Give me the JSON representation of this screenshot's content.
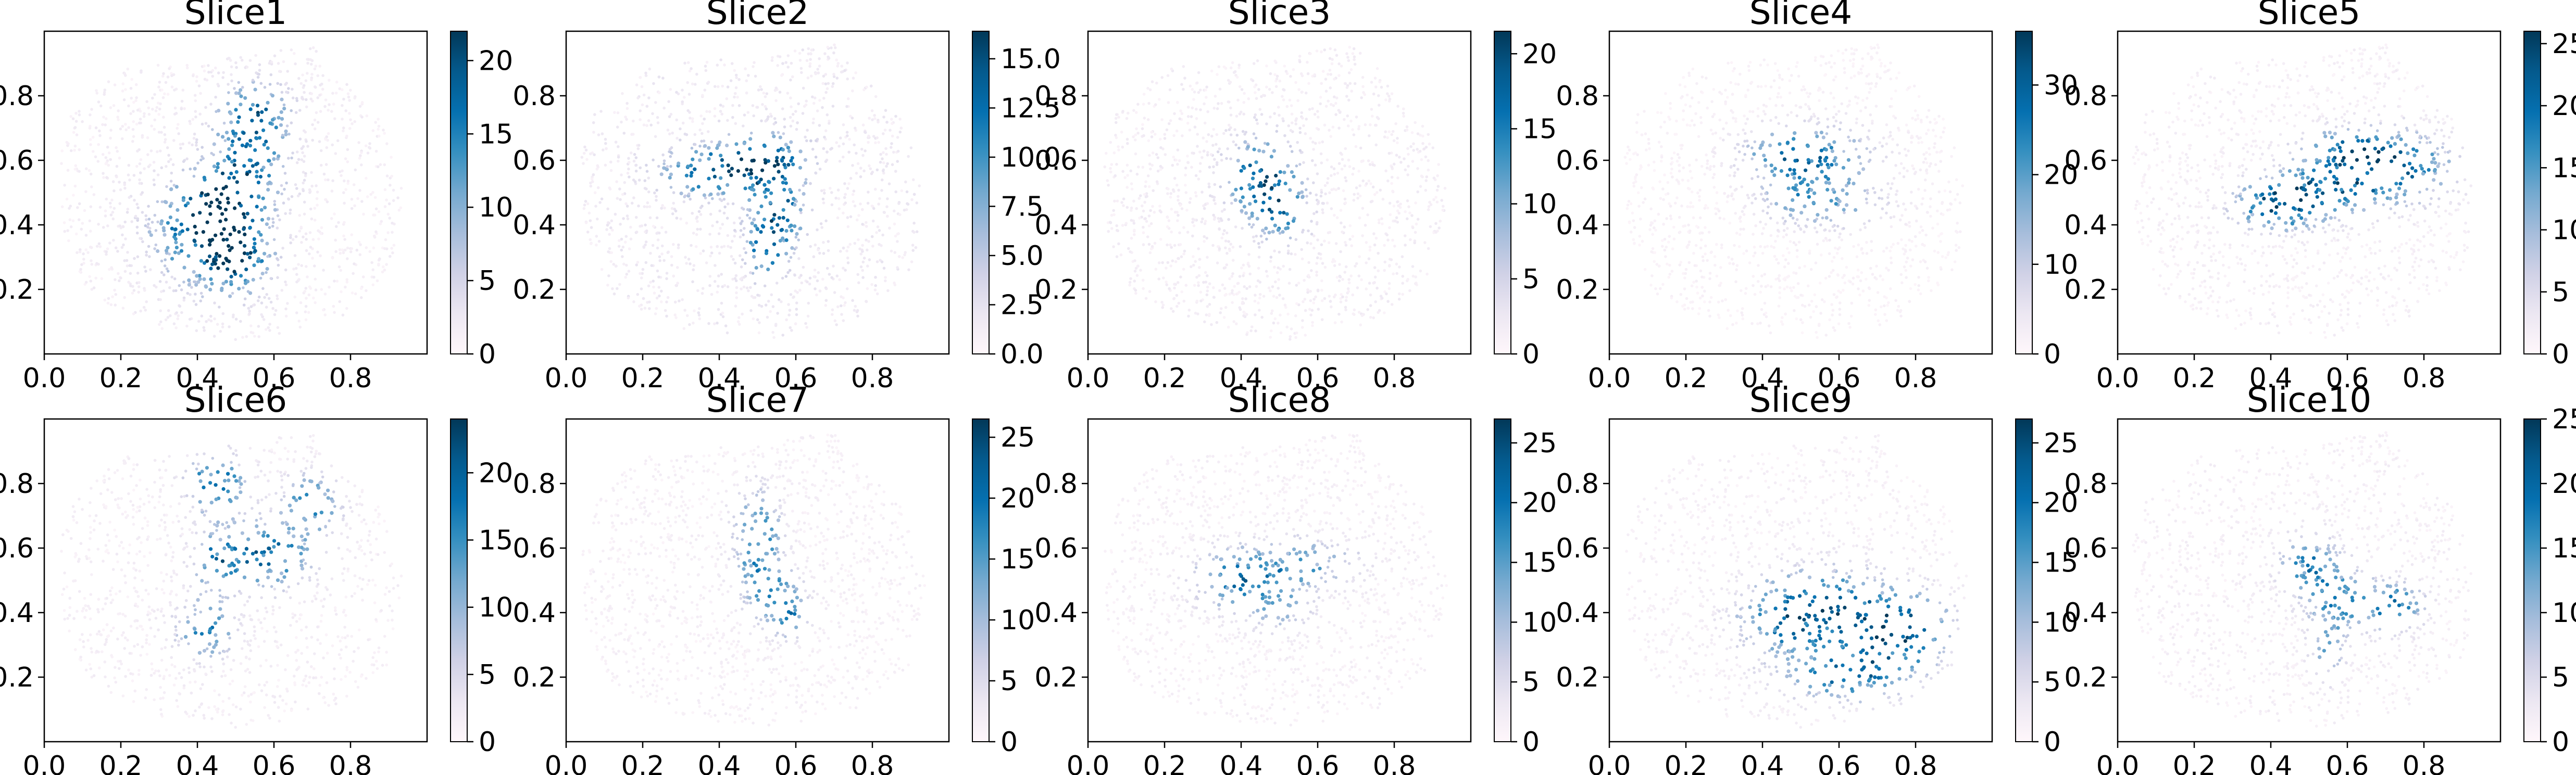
{
  "chart_data": {
    "type": "scatter",
    "layout": "2x5 grid",
    "colormap": "PuBu",
    "colormap_stops": [
      "#fff7fb",
      "#ece7f2",
      "#d0d1e6",
      "#a6bddb",
      "#74a9cf",
      "#3690c0",
      "#0570b0",
      "#045a8d",
      "#023858"
    ],
    "xlim": [
      0.0,
      1.0
    ],
    "ylim": [
      0.0,
      1.0
    ],
    "x_ticks": [
      "0.0",
      "0.2",
      "0.4",
      "0.6",
      "0.8"
    ],
    "y_ticks": [
      "0.2",
      "0.4",
      "0.6",
      "0.8"
    ],
    "tissue_outline": [
      [
        0.04,
        0.62
      ],
      [
        0.08,
        0.78
      ],
      [
        0.24,
        0.9
      ],
      [
        0.5,
        0.92
      ],
      [
        0.7,
        0.96
      ],
      [
        0.88,
        0.72
      ],
      [
        0.94,
        0.5
      ],
      [
        0.9,
        0.24
      ],
      [
        0.76,
        0.1
      ],
      [
        0.52,
        0.04
      ],
      [
        0.3,
        0.08
      ],
      [
        0.12,
        0.18
      ],
      [
        0.05,
        0.36
      ]
    ],
    "panels": [
      {
        "title": "Slice1",
        "cbar_max": 22,
        "cbar_ticks": [
          "0",
          "5",
          "10",
          "15",
          "20"
        ],
        "hotspots": [
          [
            0.42,
            0.38,
            0.09,
            0.1,
            20
          ],
          [
            0.5,
            0.3,
            0.06,
            0.08,
            16
          ],
          [
            0.52,
            0.55,
            0.07,
            0.08,
            14
          ],
          [
            0.55,
            0.72,
            0.06,
            0.08,
            18
          ],
          [
            0.45,
            0.48,
            0.06,
            0.06,
            12
          ]
        ]
      },
      {
        "title": "Slice2",
        "cbar_max": 16.4,
        "cbar_ticks": [
          "0.0",
          "2.5",
          "5.0",
          "7.5",
          "10.0",
          "12.5",
          "15.0"
        ],
        "hotspots": [
          [
            0.36,
            0.56,
            0.08,
            0.05,
            12
          ],
          [
            0.5,
            0.6,
            0.08,
            0.05,
            14
          ],
          [
            0.55,
            0.45,
            0.05,
            0.1,
            13
          ],
          [
            0.52,
            0.32,
            0.03,
            0.06,
            10
          ]
        ]
      },
      {
        "title": "Slice3",
        "cbar_max": 21.5,
        "cbar_ticks": [
          "0",
          "5",
          "10",
          "15",
          "20"
        ],
        "hotspots": [
          [
            0.45,
            0.55,
            0.06,
            0.08,
            18
          ],
          [
            0.5,
            0.45,
            0.05,
            0.07,
            14
          ]
        ]
      },
      {
        "title": "Slice4",
        "cbar_max": 36,
        "cbar_ticks": [
          "0",
          "10",
          "20",
          "30"
        ],
        "hotspots": [
          [
            0.55,
            0.6,
            0.1,
            0.07,
            22
          ],
          [
            0.45,
            0.62,
            0.08,
            0.05,
            16
          ],
          [
            0.6,
            0.46,
            0.09,
            0.05,
            14
          ],
          [
            0.48,
            0.48,
            0.06,
            0.05,
            12
          ]
        ]
      },
      {
        "title": "Slice5",
        "cbar_max": 26,
        "cbar_ticks": [
          "0",
          "5",
          "10",
          "15",
          "20",
          "25"
        ],
        "hotspots": [
          [
            0.42,
            0.46,
            0.08,
            0.05,
            22
          ],
          [
            0.55,
            0.52,
            0.1,
            0.06,
            18
          ],
          [
            0.72,
            0.58,
            0.1,
            0.07,
            22
          ],
          [
            0.6,
            0.64,
            0.08,
            0.04,
            14
          ]
        ]
      },
      {
        "title": "Slice6",
        "cbar_max": 24,
        "cbar_ticks": [
          "0",
          "5",
          "10",
          "15",
          "20"
        ],
        "hotspots": [
          [
            0.45,
            0.8,
            0.05,
            0.06,
            20
          ],
          [
            0.7,
            0.74,
            0.05,
            0.06,
            16
          ],
          [
            0.58,
            0.58,
            0.08,
            0.07,
            20
          ],
          [
            0.45,
            0.56,
            0.04,
            0.06,
            14
          ],
          [
            0.42,
            0.35,
            0.05,
            0.06,
            16
          ]
        ]
      },
      {
        "title": "Slice7",
        "cbar_max": 26.5,
        "cbar_ticks": [
          "0",
          "5",
          "10",
          "15",
          "20",
          "25"
        ],
        "hotspots": [
          [
            0.5,
            0.62,
            0.04,
            0.1,
            20
          ],
          [
            0.55,
            0.45,
            0.05,
            0.06,
            16
          ],
          [
            0.58,
            0.38,
            0.03,
            0.04,
            14
          ]
        ]
      },
      {
        "title": "Slice8",
        "cbar_max": 27,
        "cbar_ticks": [
          "0",
          "5",
          "10",
          "15",
          "20",
          "25"
        ],
        "hotspots": [
          [
            0.38,
            0.5,
            0.07,
            0.06,
            18
          ],
          [
            0.55,
            0.55,
            0.1,
            0.05,
            16
          ],
          [
            0.5,
            0.42,
            0.06,
            0.05,
            12
          ]
        ]
      },
      {
        "title": "Slice9",
        "cbar_max": 27,
        "cbar_ticks": [
          "0",
          "5",
          "10",
          "15",
          "20",
          "25"
        ],
        "hotspots": [
          [
            0.45,
            0.38,
            0.08,
            0.08,
            18
          ],
          [
            0.6,
            0.42,
            0.1,
            0.08,
            20
          ],
          [
            0.72,
            0.3,
            0.1,
            0.08,
            20
          ],
          [
            0.6,
            0.2,
            0.1,
            0.05,
            16
          ],
          [
            0.8,
            0.38,
            0.06,
            0.06,
            14
          ]
        ]
      },
      {
        "title": "Slice10",
        "cbar_max": 25,
        "cbar_ticks": [
          "0",
          "5",
          "10",
          "15",
          "20",
          "25"
        ],
        "hotspots": [
          [
            0.5,
            0.55,
            0.05,
            0.06,
            16
          ],
          [
            0.58,
            0.44,
            0.06,
            0.07,
            16
          ],
          [
            0.72,
            0.42,
            0.05,
            0.05,
            20
          ],
          [
            0.55,
            0.28,
            0.03,
            0.06,
            12
          ]
        ]
      }
    ]
  }
}
